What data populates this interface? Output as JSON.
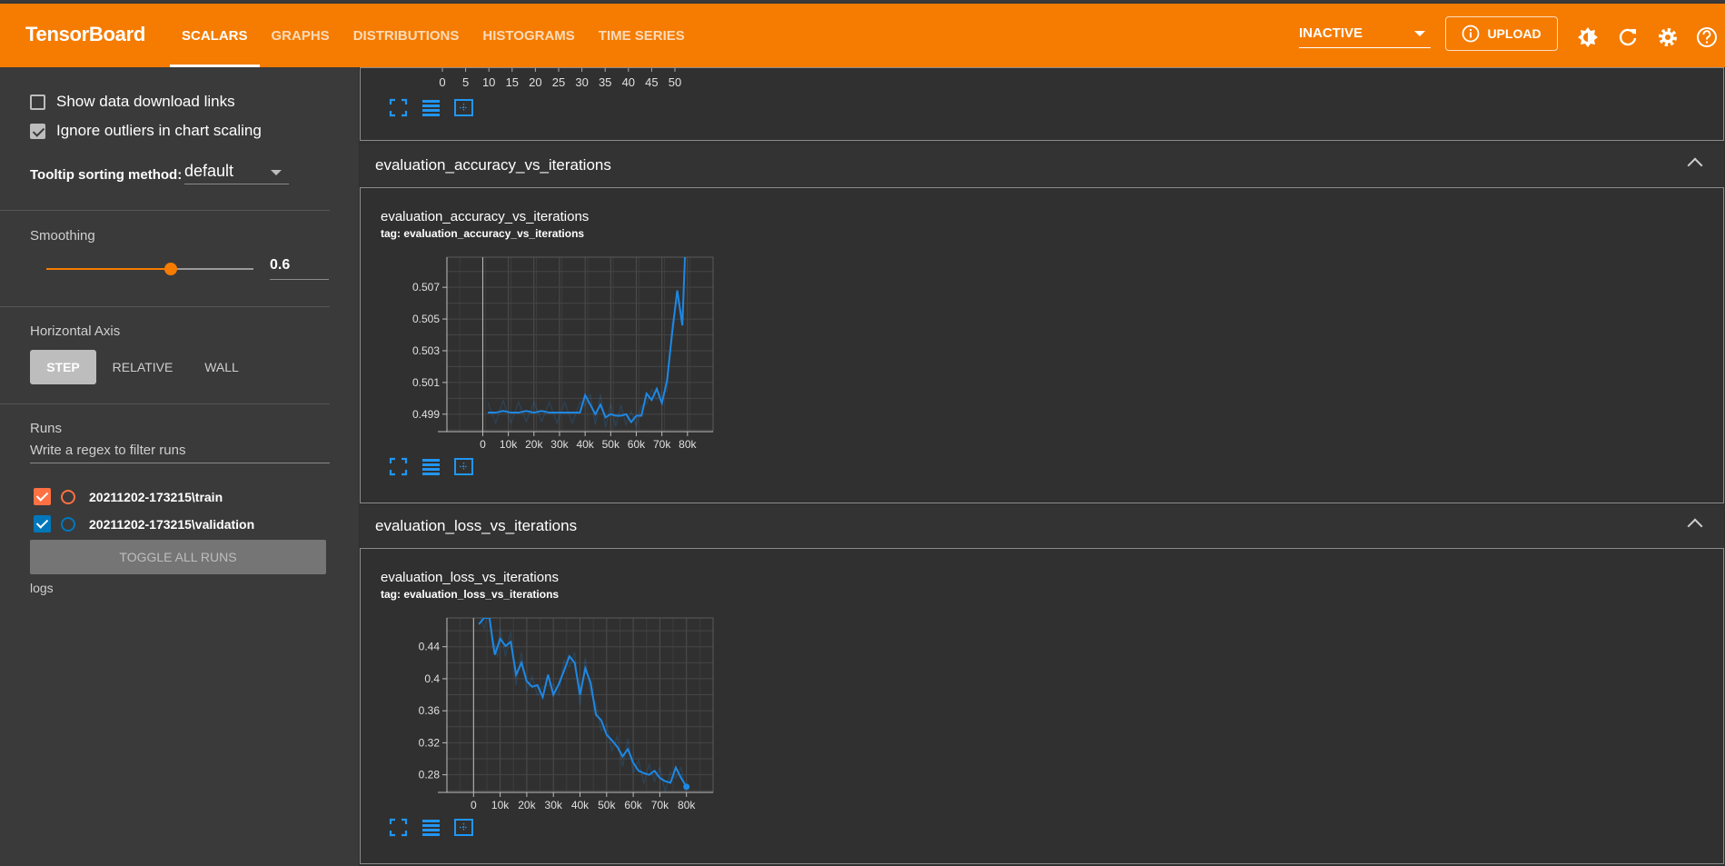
{
  "app": {
    "title": "TensorBoard"
  },
  "tabs": [
    {
      "label": "SCALARS",
      "active": true
    },
    {
      "label": "GRAPHS"
    },
    {
      "label": "DISTRIBUTIONS"
    },
    {
      "label": "HISTOGRAMS"
    },
    {
      "label": "TIME SERIES"
    }
  ],
  "header": {
    "plugin_select": "INACTIVE",
    "upload_label": "UPLOAD",
    "icons": [
      "theme-icon",
      "refresh-icon",
      "settings-icon",
      "help-icon"
    ]
  },
  "sidebar": {
    "show_download_links": {
      "label": "Show data download links",
      "checked": false
    },
    "ignore_outliers": {
      "label": "Ignore outliers in chart scaling",
      "checked": true
    },
    "tooltip_label": "Tooltip sorting method:",
    "tooltip_value": "default",
    "smoothing_label": "Smoothing",
    "smoothing_value": "0.6",
    "smoothing_fraction": 0.6,
    "horizontal_axis_label": "Horizontal Axis",
    "axis_buttons": [
      "STEP",
      "RELATIVE",
      "WALL"
    ],
    "axis_selected": "STEP",
    "runs_label": "Runs",
    "runs_filter_placeholder": "Write a regex to filter runs",
    "runs": [
      {
        "name": "20211202-173215\\train",
        "color": "#ff7043",
        "checked": true
      },
      {
        "name": "20211202-173215\\validation",
        "color": "#0077bb",
        "checked": true
      }
    ],
    "toggle_all": "TOGGLE ALL RUNS",
    "logs_label": "logs"
  },
  "colors": {
    "accent": "#f57c00",
    "series": "#1e88e5"
  },
  "top_chart_axis": {
    "ticks": [
      "0",
      "5",
      "10",
      "15",
      "20",
      "25",
      "30",
      "35",
      "40",
      "45",
      "50"
    ]
  },
  "groups": [
    {
      "title": "evaluation_accuracy_vs_iterations",
      "card_title": "evaluation_accuracy_vs_iterations",
      "card_tag": "tag: evaluation_accuracy_vs_iterations"
    },
    {
      "title": "evaluation_loss_vs_iterations",
      "card_title": "evaluation_loss_vs_iterations",
      "card_tag": "tag: evaluation_loss_vs_iterations"
    }
  ],
  "chart_data": [
    {
      "type": "line",
      "title": "evaluation_accuracy_vs_iterations",
      "x_ticks": [
        "0",
        "10k",
        "20k",
        "30k",
        "40k",
        "50k",
        "60k",
        "70k",
        "80k"
      ],
      "y_ticks": [
        "0.499",
        "0.501",
        "0.503",
        "0.505",
        "0.507"
      ],
      "xlim": [
        -14000,
        90000
      ],
      "ylim": [
        0.4979,
        0.5089
      ],
      "grid": true,
      "series": [
        {
          "x": [
            2000,
            5000,
            8000,
            11000,
            14000,
            17000,
            20000,
            23000,
            26000,
            29000,
            32000,
            35000,
            38000,
            40000,
            42000,
            44000,
            46000,
            48000,
            50000,
            52000,
            54000,
            56000,
            58000,
            60000,
            62000,
            64000,
            66000,
            68000,
            70000,
            72000,
            74000,
            76000,
            78000,
            79000
          ],
          "y": [
            0.4991,
            0.4991,
            0.4992,
            0.4991,
            0.4991,
            0.4992,
            0.4991,
            0.4992,
            0.4991,
            0.4991,
            0.4991,
            0.4991,
            0.4991,
            0.5002,
            0.4996,
            0.499,
            0.4996,
            0.4988,
            0.499,
            0.4989,
            0.4989,
            0.499,
            0.4985,
            0.4989,
            0.4989,
            0.5003,
            0.4999,
            0.5006,
            0.4997,
            0.5011,
            0.5041,
            0.5068,
            0.5046,
            0.5089
          ]
        }
      ]
    },
    {
      "type": "line",
      "title": "evaluation_loss_vs_iterations",
      "x_ticks": [
        "0",
        "10k",
        "20k",
        "30k",
        "40k",
        "50k",
        "60k",
        "70k",
        "80k"
      ],
      "y_ticks": [
        "0.28",
        "0.32",
        "0.36",
        "0.4",
        "0.44"
      ],
      "xlim": [
        -10000,
        90000
      ],
      "ylim": [
        0.258,
        0.476
      ],
      "grid": true,
      "series": [
        {
          "x": [
            2000,
            4000,
            6000,
            7000,
            8000,
            9000,
            10000,
            12000,
            14000,
            16000,
            18000,
            20000,
            22000,
            24000,
            26000,
            28000,
            30000,
            32000,
            34000,
            36000,
            38000,
            40000,
            42000,
            44000,
            46000,
            48000,
            50000,
            52000,
            54000,
            56000,
            58000,
            60000,
            62000,
            64000,
            66000,
            68000,
            70000,
            72000,
            74000,
            76000,
            78000,
            80000
          ],
          "y": [
            0.468,
            0.476,
            0.476,
            0.452,
            0.43,
            0.44,
            0.45,
            0.441,
            0.446,
            0.405,
            0.42,
            0.397,
            0.39,
            0.392,
            0.377,
            0.405,
            0.38,
            0.393,
            0.41,
            0.428,
            0.42,
            0.38,
            0.413,
            0.395,
            0.355,
            0.348,
            0.33,
            0.323,
            0.315,
            0.303,
            0.312,
            0.295,
            0.285,
            0.282,
            0.28,
            0.285,
            0.276,
            0.272,
            0.27,
            0.289,
            0.276,
            0.265
          ]
        }
      ]
    }
  ]
}
